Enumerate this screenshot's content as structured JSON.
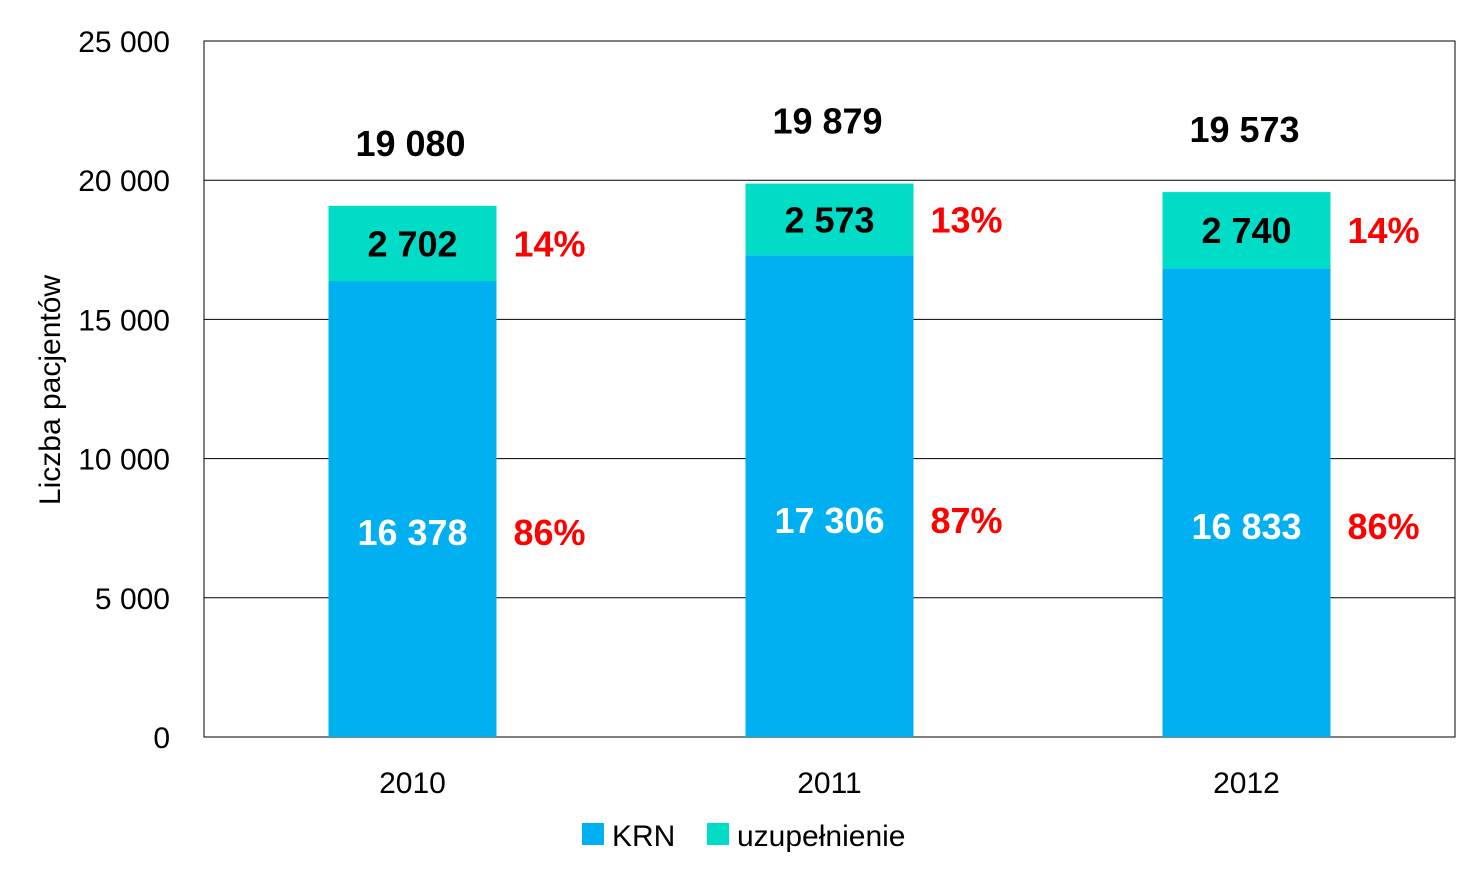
{
  "chart_data": {
    "type": "bar",
    "stacked": true,
    "categories": [
      "2010",
      "2011",
      "2012"
    ],
    "series": [
      {
        "name": "KRN",
        "color": "#00b0f0",
        "values": [
          16378,
          17306,
          16833
        ],
        "value_labels": [
          "16 378",
          "17 306",
          "16 833"
        ],
        "percent_labels": [
          "86%",
          "87%",
          "86%"
        ]
      },
      {
        "name": "uzupełnienie",
        "color": "#00dcc6",
        "values": [
          2702,
          2573,
          2740
        ],
        "value_labels": [
          "2 702",
          "2 573",
          "2 740"
        ],
        "percent_labels": [
          "14%",
          "13%",
          "14%"
        ]
      }
    ],
    "totals": [
      19080,
      19879,
      19573
    ],
    "total_labels": [
      "19 080",
      "19 879",
      "19 573"
    ],
    "ylabel": "Liczba pacjentów",
    "xlabel": "",
    "ylim": [
      0,
      25000
    ],
    "yticks": [
      0,
      5000,
      10000,
      15000,
      20000,
      25000
    ],
    "ytick_labels": [
      "0",
      "5 000",
      "10 000",
      "15 000",
      "20 000",
      "25 000"
    ],
    "grid": true,
    "legend": {
      "position": "bottom",
      "entries": [
        "KRN",
        "uzupełnienie"
      ]
    },
    "colors": {
      "percent": "#ff0000",
      "grid": "#000000"
    }
  }
}
